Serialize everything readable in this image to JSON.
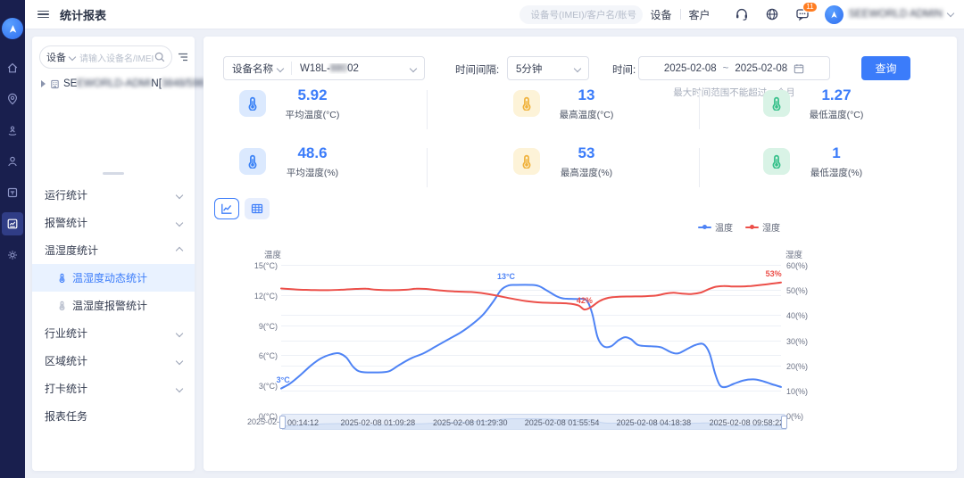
{
  "topbar": {
    "title": "统计报表",
    "search_placeholder": "设备号(IMEI)/客户名/账号",
    "device_tab": "设备",
    "customer_tab": "客户",
    "message_badge": "11",
    "username": "SEEWORLD ADMIN"
  },
  "rail": {
    "items": [
      "home",
      "location",
      "street-view",
      "user",
      "device",
      "statistics",
      "settings"
    ],
    "active": "statistics"
  },
  "sidebar": {
    "search_type": "设备",
    "search_placeholder": "请输入设备名/IMEI",
    "tree_item": {
      "visible_start": "SE",
      "blurred_1": "EWORLD-ADMI",
      "visible_mid": "N[",
      "blurred_2": "3848/598",
      "visible_end": "8]"
    },
    "menu": [
      {
        "label": "运行统计",
        "level": 1,
        "chevron": "down"
      },
      {
        "label": "报警统计",
        "level": 1,
        "chevron": "down"
      },
      {
        "label": "温湿度统计",
        "level": 1,
        "chevron": "up"
      },
      {
        "label": "温湿度动态统计",
        "level": 2,
        "active": true
      },
      {
        "label": "温湿度报警统计",
        "level": 2
      },
      {
        "label": "行业统计",
        "level": 1,
        "chevron": "down"
      },
      {
        "label": "区域统计",
        "level": 1,
        "chevron": "down"
      },
      {
        "label": "打卡统计",
        "level": 1,
        "chevron": "down"
      },
      {
        "label": "报表任务",
        "level": 1
      }
    ]
  },
  "filters": {
    "device_select_label": "设备名称",
    "device_value": {
      "prefix": "W18L-",
      "blurred": "880",
      "suffix": "02"
    },
    "interval_label": "时间间隔:",
    "interval_value": "5分钟",
    "time_label": "时间:",
    "date_start": "2025-02-08",
    "date_separator": "~",
    "date_end": "2025-02-08",
    "date_hint": "最大时间范围不能超过一个月",
    "query_button": "查询"
  },
  "stats": [
    {
      "value": "5.92",
      "label": "平均温度(°C)",
      "color": "blue",
      "icon": "thermometer-icon"
    },
    {
      "value": "13",
      "label": "最高温度(°C)",
      "color": "yellow",
      "icon": "thermometer-icon"
    },
    {
      "value": "1.27",
      "label": "最低温度(°C)",
      "color": "green",
      "icon": "thermometer-icon"
    },
    {
      "value": "48.6",
      "label": "平均湿度(%)",
      "color": "blue",
      "icon": "thermometer-icon"
    },
    {
      "value": "53",
      "label": "最高湿度(%)",
      "color": "yellow",
      "icon": "thermometer-icon"
    },
    {
      "value": "1",
      "label": "最低湿度(%)",
      "color": "green",
      "icon": "thermometer-icon"
    }
  ],
  "chart_data": {
    "type": "line",
    "legend": [
      {
        "name": "温度",
        "color": "#4e83f5"
      },
      {
        "name": "湿度",
        "color": "#ec4f49"
      }
    ],
    "left_axis": {
      "title": "温度",
      "unit": "°C",
      "ticks": [
        0,
        3,
        6,
        9,
        12,
        15
      ],
      "min": 0,
      "max": 15
    },
    "right_axis": {
      "title": "湿度",
      "unit": "%",
      "ticks": [
        0,
        10,
        20,
        30,
        40,
        50,
        60
      ],
      "min": 0,
      "max": 60
    },
    "grid": true,
    "series": [
      {
        "name": "温度",
        "axis": "left",
        "color": "#4e83f5",
        "points": [
          [
            0,
            2.7
          ],
          [
            0.018,
            3.2
          ],
          [
            0.04,
            4.1
          ],
          [
            0.06,
            5.0
          ],
          [
            0.08,
            5.7
          ],
          [
            0.1,
            6.1
          ],
          [
            0.115,
            6.2
          ],
          [
            0.13,
            5.8
          ],
          [
            0.145,
            4.8
          ],
          [
            0.16,
            4.35
          ],
          [
            0.19,
            4.3
          ],
          [
            0.215,
            4.4
          ],
          [
            0.235,
            5.0
          ],
          [
            0.26,
            5.7
          ],
          [
            0.285,
            6.2
          ],
          [
            0.31,
            6.9
          ],
          [
            0.335,
            7.6
          ],
          [
            0.36,
            8.3
          ],
          [
            0.385,
            9.2
          ],
          [
            0.405,
            10.1
          ],
          [
            0.425,
            11.4
          ],
          [
            0.44,
            12.5
          ],
          [
            0.455,
            12.95
          ],
          [
            0.47,
            13.0
          ],
          [
            0.5,
            13.0
          ],
          [
            0.515,
            12.9
          ],
          [
            0.53,
            12.5
          ],
          [
            0.55,
            11.9
          ],
          [
            0.565,
            11.65
          ],
          [
            0.59,
            11.6
          ],
          [
            0.61,
            11.5
          ],
          [
            0.622,
            10.2
          ],
          [
            0.633,
            7.8
          ],
          [
            0.645,
            6.9
          ],
          [
            0.66,
            6.9
          ],
          [
            0.675,
            7.5
          ],
          [
            0.688,
            7.8
          ],
          [
            0.7,
            7.6
          ],
          [
            0.715,
            7.0
          ],
          [
            0.74,
            6.9
          ],
          [
            0.76,
            6.8
          ],
          [
            0.78,
            6.3
          ],
          [
            0.795,
            6.2
          ],
          [
            0.815,
            6.7
          ],
          [
            0.83,
            7.05
          ],
          [
            0.845,
            7.1
          ],
          [
            0.857,
            6.2
          ],
          [
            0.868,
            4.2
          ],
          [
            0.878,
            3.0
          ],
          [
            0.89,
            2.85
          ],
          [
            0.905,
            3.15
          ],
          [
            0.925,
            3.5
          ],
          [
            0.945,
            3.6
          ],
          [
            0.962,
            3.45
          ],
          [
            0.98,
            3.15
          ],
          [
            1,
            2.85
          ]
        ]
      },
      {
        "name": "湿度",
        "axis": "right",
        "color": "#ec4f49",
        "points": [
          [
            0,
            50.6
          ],
          [
            0.03,
            50.2
          ],
          [
            0.06,
            50.0
          ],
          [
            0.09,
            49.9
          ],
          [
            0.12,
            50.1
          ],
          [
            0.15,
            50.4
          ],
          [
            0.17,
            50.5
          ],
          [
            0.19,
            50.1
          ],
          [
            0.22,
            49.9
          ],
          [
            0.25,
            50.1
          ],
          [
            0.27,
            50.5
          ],
          [
            0.29,
            50.4
          ],
          [
            0.32,
            49.8
          ],
          [
            0.35,
            49.4
          ],
          [
            0.38,
            49.2
          ],
          [
            0.4,
            48.8
          ],
          [
            0.43,
            47.8
          ],
          [
            0.46,
            46.6
          ],
          [
            0.49,
            45.6
          ],
          [
            0.52,
            45.0
          ],
          [
            0.55,
            44.8
          ],
          [
            0.575,
            44.6
          ],
          [
            0.595,
            43.8
          ],
          [
            0.607,
            42.2
          ],
          [
            0.62,
            43.2
          ],
          [
            0.637,
            45.6
          ],
          [
            0.655,
            46.9
          ],
          [
            0.675,
            47.3
          ],
          [
            0.7,
            47.4
          ],
          [
            0.725,
            47.5
          ],
          [
            0.75,
            47.8
          ],
          [
            0.77,
            48.6
          ],
          [
            0.785,
            48.9
          ],
          [
            0.8,
            48.6
          ],
          [
            0.82,
            48.4
          ],
          [
            0.84,
            49.0
          ],
          [
            0.855,
            50.3
          ],
          [
            0.87,
            51.3
          ],
          [
            0.885,
            51.6
          ],
          [
            0.9,
            51.4
          ],
          [
            0.92,
            51.4
          ],
          [
            0.94,
            51.6
          ],
          [
            0.96,
            52.0
          ],
          [
            0.98,
            52.5
          ],
          [
            1,
            53.0
          ]
        ]
      }
    ],
    "point_labels": [
      {
        "text": "3°C",
        "x": 0.004,
        "value": 2.7,
        "axis": "left",
        "color": "#4e83f5"
      },
      {
        "text": "13°C",
        "x": 0.45,
        "value": 13,
        "axis": "left",
        "color": "#4e83f5"
      },
      {
        "text": "42%",
        "x": 0.607,
        "value": 42.2,
        "axis": "right",
        "color": "#ec4f49"
      },
      {
        "text": "53%",
        "x": 0.985,
        "value": 53,
        "axis": "right",
        "color": "#ec4f49"
      }
    ],
    "x_axis_clipped_label": "2025-02-0",
    "slider_labels": [
      "00:14:12",
      "2025-02-08 01:09:28",
      "2025-02-08 01:29:30",
      "2025-02-08 01:55:54",
      "2025-02-08 04:18:38",
      "2025-02-08 09:58:22"
    ]
  }
}
